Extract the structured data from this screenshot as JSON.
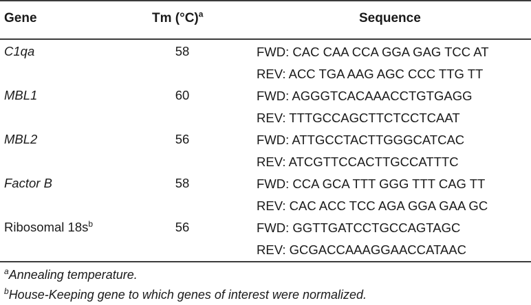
{
  "header": {
    "gene": "Gene",
    "tm": "Tm (°C)",
    "tm_sup": "a",
    "sequence": "Sequence"
  },
  "rows": [
    {
      "gene": "C1qa",
      "gene_sup": "",
      "tm": "58",
      "fwd": "FWD: CAC CAA CCA GGA GAG TCC AT",
      "rev": "REV: ACC TGA AAG AGC CCC TTG TT"
    },
    {
      "gene": "MBL1",
      "gene_sup": "",
      "tm": "60",
      "fwd": "FWD: AGGGTCACAAACCTGTGAGG",
      "rev": "REV: TTTGCCAGCTTCTCCTCAAT"
    },
    {
      "gene": "MBL2",
      "gene_sup": "",
      "tm": "56",
      "fwd": "FWD: ATTGCCTACTTGGGCATCAC",
      "rev": "REV: ATCGTTCCACTTGCCATTTC"
    },
    {
      "gene": "Factor B",
      "gene_sup": "",
      "tm": "58",
      "fwd": "FWD: CCA GCA TTT GGG TTT CAG TT",
      "rev": "REV: CAC ACC TCC AGA GGA GAA GC"
    },
    {
      "gene": "Ribosomal 18s",
      "gene_sup": "b",
      "tm": "56",
      "fwd": "FWD: GGTTGATCCTGCCAGTAGC",
      "rev": "REV: GCGACCAAAGGAACCATAAC"
    }
  ],
  "footnotes": [
    {
      "mark": "a",
      "text": "Annealing temperature."
    },
    {
      "mark": "b",
      "text": "House-Keeping gene to which genes of interest were normalized."
    }
  ]
}
